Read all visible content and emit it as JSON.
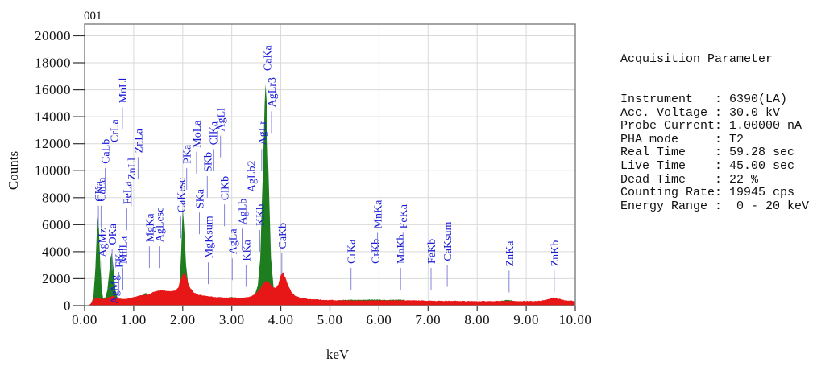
{
  "panel": {
    "title": "Acquisition Parameter",
    "lines": [
      "Instrument   : 6390(LA)",
      "Acc. Voltage : 30.0 kV",
      "Probe Current: 1.00000 nA",
      "PHA mode     : T2",
      "Real Time    : 59.28 sec",
      "Live Time    : 45.00 sec",
      "Dead Time    : 22 %",
      "Counting Rate: 19945 cps",
      "Energy Range :  0 - 20 keV"
    ]
  },
  "chart_data": {
    "type": "area",
    "title": "001",
    "xlabel": "keV",
    "ylabel": "Counts",
    "xlim": [
      0,
      10
    ],
    "ylim": [
      0,
      20835
    ],
    "grid": true,
    "legend": "none",
    "x_tick_labels": [
      "0.00",
      "1.00",
      "2.00",
      "3.00",
      "4.00",
      "5.00",
      "6.00",
      "7.00",
      "8.00",
      "9.00",
      "10.00"
    ],
    "y_tick_values": [
      0,
      2000,
      4000,
      6000,
      8000,
      10000,
      12000,
      14000,
      16000,
      18000,
      20000
    ],
    "colors": {
      "green_series": "#1e7d1f",
      "red_series": "#e81717",
      "peak_label_text": "#1a1ad6",
      "peak_label_tick": "#8585e0",
      "grid": "#d9d9d9",
      "border": "#7d7d7d",
      "tick": "#333333",
      "text": "#111111"
    },
    "series": [
      {
        "name": "spectrum-green",
        "color": "#1e7d1f",
        "points": [
          [
            0.0,
            0
          ],
          [
            0.06,
            0
          ],
          [
            0.1,
            60
          ],
          [
            0.14,
            200
          ],
          [
            0.18,
            700
          ],
          [
            0.22,
            2800
          ],
          [
            0.25,
            5600
          ],
          [
            0.27,
            6650
          ],
          [
            0.29,
            5800
          ],
          [
            0.32,
            3000
          ],
          [
            0.35,
            1100
          ],
          [
            0.38,
            520
          ],
          [
            0.42,
            620
          ],
          [
            0.46,
            1100
          ],
          [
            0.5,
            2400
          ],
          [
            0.53,
            3600
          ],
          [
            0.55,
            3890
          ],
          [
            0.57,
            3500
          ],
          [
            0.6,
            2300
          ],
          [
            0.63,
            1100
          ],
          [
            0.67,
            560
          ],
          [
            0.72,
            420
          ],
          [
            0.8,
            370
          ],
          [
            0.9,
            400
          ],
          [
            0.96,
            470
          ],
          [
            1.02,
            520
          ],
          [
            1.1,
            600
          ],
          [
            1.18,
            780
          ],
          [
            1.25,
            950
          ],
          [
            1.31,
            700
          ],
          [
            1.38,
            480
          ],
          [
            1.46,
            390
          ],
          [
            1.56,
            370
          ],
          [
            1.66,
            390
          ],
          [
            1.76,
            430
          ],
          [
            1.84,
            520
          ],
          [
            1.9,
            900
          ],
          [
            1.94,
            1900
          ],
          [
            1.97,
            4200
          ],
          [
            2.0,
            7200
          ],
          [
            2.03,
            5800
          ],
          [
            2.07,
            2900
          ],
          [
            2.12,
            1400
          ],
          [
            2.18,
            850
          ],
          [
            2.25,
            650
          ],
          [
            2.31,
            700
          ],
          [
            2.38,
            580
          ],
          [
            2.45,
            560
          ],
          [
            2.51,
            640
          ],
          [
            2.58,
            560
          ],
          [
            2.65,
            540
          ],
          [
            2.75,
            520
          ],
          [
            2.85,
            560
          ],
          [
            2.95,
            620
          ],
          [
            3.0,
            640
          ],
          [
            3.08,
            560
          ],
          [
            3.16,
            540
          ],
          [
            3.24,
            560
          ],
          [
            3.32,
            580
          ],
          [
            3.4,
            620
          ],
          [
            3.47,
            780
          ],
          [
            3.53,
            1500
          ],
          [
            3.58,
            3500
          ],
          [
            3.63,
            9500
          ],
          [
            3.67,
            14800
          ],
          [
            3.69,
            16500
          ],
          [
            3.71,
            15200
          ],
          [
            3.75,
            9500
          ],
          [
            3.8,
            3500
          ],
          [
            3.85,
            1400
          ],
          [
            3.92,
            620
          ],
          [
            4.0,
            400
          ],
          [
            4.1,
            310
          ],
          [
            4.3,
            270
          ],
          [
            4.6,
            250
          ],
          [
            5.0,
            260
          ],
          [
            5.15,
            380
          ],
          [
            5.3,
            430
          ],
          [
            5.45,
            440
          ],
          [
            5.6,
            420
          ],
          [
            5.75,
            440
          ],
          [
            5.95,
            450
          ],
          [
            6.1,
            430
          ],
          [
            6.3,
            440
          ],
          [
            6.5,
            430
          ],
          [
            6.6,
            350
          ],
          [
            6.8,
            300
          ],
          [
            7.0,
            250
          ],
          [
            7.4,
            230
          ],
          [
            7.8,
            230
          ],
          [
            8.2,
            260
          ],
          [
            8.45,
            320
          ],
          [
            8.63,
            430
          ],
          [
            8.8,
            300
          ],
          [
            9.1,
            240
          ],
          [
            9.4,
            250
          ],
          [
            9.57,
            320
          ],
          [
            9.75,
            240
          ],
          [
            10.0,
            230
          ]
        ]
      },
      {
        "name": "spectrum-red",
        "color": "#e81717",
        "points": [
          [
            0.0,
            0
          ],
          [
            0.08,
            0
          ],
          [
            0.12,
            120
          ],
          [
            0.16,
            350
          ],
          [
            0.2,
            520
          ],
          [
            0.25,
            600
          ],
          [
            0.3,
            560
          ],
          [
            0.36,
            480
          ],
          [
            0.42,
            520
          ],
          [
            0.5,
            640
          ],
          [
            0.58,
            720
          ],
          [
            0.65,
            600
          ],
          [
            0.72,
            520
          ],
          [
            0.8,
            480
          ],
          [
            0.88,
            520
          ],
          [
            0.95,
            580
          ],
          [
            1.02,
            640
          ],
          [
            1.1,
            720
          ],
          [
            1.2,
            800
          ],
          [
            1.3,
            820
          ],
          [
            1.4,
            1020
          ],
          [
            1.5,
            1120
          ],
          [
            1.6,
            1150
          ],
          [
            1.7,
            1100
          ],
          [
            1.78,
            1060
          ],
          [
            1.85,
            1120
          ],
          [
            1.91,
            1350
          ],
          [
            1.96,
            1900
          ],
          [
            2.0,
            2300
          ],
          [
            2.04,
            2450
          ],
          [
            2.09,
            1900
          ],
          [
            2.15,
            1350
          ],
          [
            2.22,
            1000
          ],
          [
            2.3,
            830
          ],
          [
            2.4,
            760
          ],
          [
            2.5,
            720
          ],
          [
            2.6,
            660
          ],
          [
            2.7,
            620
          ],
          [
            2.8,
            600
          ],
          [
            2.9,
            600
          ],
          [
            3.0,
            620
          ],
          [
            3.1,
            580
          ],
          [
            3.2,
            580
          ],
          [
            3.3,
            620
          ],
          [
            3.4,
            700
          ],
          [
            3.5,
            950
          ],
          [
            3.58,
            1300
          ],
          [
            3.65,
            1700
          ],
          [
            3.7,
            1850
          ],
          [
            3.76,
            1700
          ],
          [
            3.83,
            1400
          ],
          [
            3.9,
            1300
          ],
          [
            3.95,
            1600
          ],
          [
            4.0,
            2300
          ],
          [
            4.04,
            2500
          ],
          [
            4.09,
            2100
          ],
          [
            4.15,
            1500
          ],
          [
            4.22,
            1000
          ],
          [
            4.3,
            720
          ],
          [
            4.4,
            580
          ],
          [
            4.55,
            500
          ],
          [
            4.7,
            460
          ],
          [
            4.9,
            430
          ],
          [
            5.1,
            400
          ],
          [
            5.3,
            390
          ],
          [
            5.5,
            380
          ],
          [
            5.7,
            380
          ],
          [
            5.9,
            390
          ],
          [
            6.1,
            390
          ],
          [
            6.3,
            390
          ],
          [
            6.5,
            400
          ],
          [
            6.7,
            390
          ],
          [
            6.9,
            380
          ],
          [
            7.1,
            360
          ],
          [
            7.3,
            350
          ],
          [
            7.5,
            350
          ],
          [
            7.7,
            340
          ],
          [
            7.9,
            340
          ],
          [
            8.1,
            340
          ],
          [
            8.3,
            340
          ],
          [
            8.5,
            350
          ],
          [
            8.7,
            350
          ],
          [
            8.9,
            340
          ],
          [
            9.1,
            340
          ],
          [
            9.3,
            360
          ],
          [
            9.45,
            480
          ],
          [
            9.55,
            620
          ],
          [
            9.65,
            520
          ],
          [
            9.8,
            400
          ],
          [
            10.0,
            340
          ]
        ]
      }
    ],
    "peak_labels": [
      {
        "text": "CKa",
        "kev": 0.28,
        "base": 7700
      },
      {
        "text": "CaLa",
        "kev": 0.335,
        "base": 7700
      },
      {
        "text": "CaLb",
        "kev": 0.42,
        "base": 10500
      },
      {
        "text": "CrLa",
        "kev": 0.6,
        "base": 12100
      },
      {
        "text": "MnLl",
        "kev": 0.77,
        "base": 15000
      },
      {
        "text": "AgMz",
        "kev": 0.35,
        "base": 3600
      },
      {
        "text": "AgMg",
        "kev": 0.6,
        "base": 100,
        "tick": false
      },
      {
        "text": "OKa",
        "kev": 0.56,
        "base": 4500
      },
      {
        "text": "FKa",
        "kev": 0.7,
        "base": 2800
      },
      {
        "text": "MnLa",
        "kev": 0.78,
        "base": 3100
      },
      {
        "text": "FeLa",
        "kev": 0.86,
        "base": 7500
      },
      {
        "text": "ZnLl",
        "kev": 0.95,
        "base": 9300
      },
      {
        "text": "ZnLa",
        "kev": 1.09,
        "base": 11300
      },
      {
        "text": "MgKa",
        "kev": 1.32,
        "base": 4700
      },
      {
        "text": "AgLesc",
        "kev": 1.52,
        "base": 4700
      },
      {
        "text": "CaKesc",
        "kev": 1.96,
        "base": 6900
      },
      {
        "text": "PKa",
        "kev": 2.08,
        "base": 10500
      },
      {
        "text": "MoLa",
        "kev": 2.28,
        "base": 11700
      },
      {
        "text": "SKa",
        "kev": 2.34,
        "base": 7200
      },
      {
        "text": "SKb",
        "kev": 2.5,
        "base": 9900
      },
      {
        "text": "MgKsum",
        "kev": 2.52,
        "base": 3500
      },
      {
        "text": "ClKa",
        "kev": 2.62,
        "base": 11900
      },
      {
        "text": "AgLl",
        "kev": 2.77,
        "base": 12900
      },
      {
        "text": "ClKb",
        "kev": 2.85,
        "base": 7800
      },
      {
        "text": "AgLa",
        "kev": 3.01,
        "base": 3800
      },
      {
        "text": "AgLb",
        "kev": 3.21,
        "base": 6000
      },
      {
        "text": "KKa",
        "kev": 3.29,
        "base": 3300
      },
      {
        "text": "AgLb2",
        "kev": 3.39,
        "base": 8400
      },
      {
        "text": "KKb",
        "kev": 3.57,
        "base": 5900
      },
      {
        "text": "AgLr",
        "kev": 3.61,
        "base": 11900
      },
      {
        "text": "CaKa",
        "kev": 3.72,
        "base": 17400
      },
      {
        "text": "AgLr3",
        "kev": 3.81,
        "base": 14700
      },
      {
        "text": "CaKb",
        "kev": 4.02,
        "base": 4200
      },
      {
        "text": "CrKa",
        "kev": 5.43,
        "base": 3100
      },
      {
        "text": "CrKb",
        "kev": 5.92,
        "base": 3100
      },
      {
        "text": "MnKa",
        "kev": 5.97,
        "base": 5700
      },
      {
        "text": "MnKb",
        "kev": 6.44,
        "base": 3100
      },
      {
        "text": "FeKa",
        "kev": 6.49,
        "base": 5700
      },
      {
        "text": "FeKb",
        "kev": 7.06,
        "base": 3100
      },
      {
        "text": "CaKsum",
        "kev": 7.39,
        "base": 3300
      },
      {
        "text": "ZnKa",
        "kev": 8.65,
        "base": 2900
      },
      {
        "text": "ZnKb",
        "kev": 9.57,
        "base": 2900
      }
    ]
  }
}
